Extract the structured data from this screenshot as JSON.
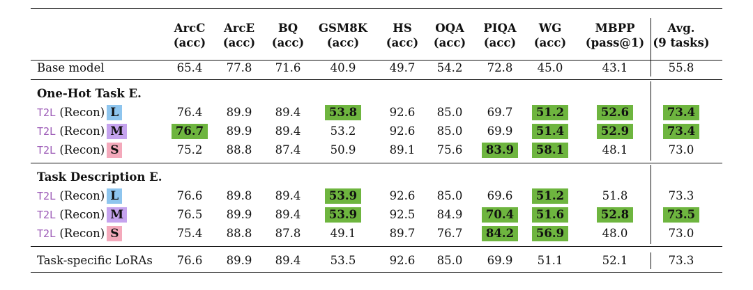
{
  "columns": [
    {
      "name": "ArcC",
      "metric": "(acc)"
    },
    {
      "name": "ArcE",
      "metric": "(acc)"
    },
    {
      "name": "BQ",
      "metric": "(acc)"
    },
    {
      "name": "GSM8K",
      "metric": "(acc)"
    },
    {
      "name": "HS",
      "metric": "(acc)"
    },
    {
      "name": "OQA",
      "metric": "(acc)"
    },
    {
      "name": "PIQA",
      "metric": "(acc)"
    },
    {
      "name": "WG",
      "metric": "(acc)"
    },
    {
      "name": "MBPP",
      "metric": "(pass@1)"
    },
    {
      "name": "Avg.",
      "metric": "(9 tasks)"
    }
  ],
  "highlight_color": "#6eb53f",
  "badge_colors": {
    "L": "#8ec5ee",
    "M": "#c5a3ee",
    "S": "#f4a9bb"
  },
  "t2l_color": "#9b59b6",
  "base_row": {
    "label": "Base model",
    "values": [
      "65.4",
      "77.8",
      "71.6",
      "40.9",
      "49.7",
      "54.2",
      "72.8",
      "45.0",
      "43.1",
      "55.8"
    ],
    "highlight": [
      false,
      false,
      false,
      false,
      false,
      false,
      false,
      false,
      false,
      false
    ]
  },
  "sections": [
    {
      "title": "One-Hot Task E.",
      "rows": [
        {
          "prefix": "T2L",
          "label": " (Recon)",
          "size": "L",
          "values": [
            "76.4",
            "89.9",
            "89.4",
            "53.8",
            "92.6",
            "85.0",
            "69.7",
            "51.2",
            "52.6",
            "73.4"
          ],
          "highlight": [
            false,
            false,
            false,
            true,
            false,
            false,
            false,
            true,
            true,
            true
          ]
        },
        {
          "prefix": "T2L",
          "label": " (Recon)",
          "size": "M",
          "values": [
            "76.7",
            "89.9",
            "89.4",
            "53.2",
            "92.6",
            "85.0",
            "69.9",
            "51.4",
            "52.9",
            "73.4"
          ],
          "highlight": [
            true,
            false,
            false,
            false,
            false,
            false,
            false,
            true,
            true,
            true
          ]
        },
        {
          "prefix": "T2L",
          "label": " (Recon)",
          "size": "S",
          "values": [
            "75.2",
            "88.8",
            "87.4",
            "50.9",
            "89.1",
            "75.6",
            "83.9",
            "58.1",
            "48.1",
            "73.0"
          ],
          "highlight": [
            false,
            false,
            false,
            false,
            false,
            false,
            true,
            true,
            false,
            false
          ]
        }
      ]
    },
    {
      "title": "Task Description E.",
      "rows": [
        {
          "prefix": "T2L",
          "label": " (Recon)",
          "size": "L",
          "values": [
            "76.6",
            "89.8",
            "89.4",
            "53.9",
            "92.6",
            "85.0",
            "69.6",
            "51.2",
            "51.8",
            "73.3"
          ],
          "highlight": [
            false,
            false,
            false,
            true,
            false,
            false,
            false,
            true,
            false,
            false
          ]
        },
        {
          "prefix": "T2L",
          "label": " (Recon)",
          "size": "M",
          "values": [
            "76.5",
            "89.9",
            "89.4",
            "53.9",
            "92.5",
            "84.9",
            "70.4",
            "51.6",
            "52.8",
            "73.5"
          ],
          "highlight": [
            false,
            false,
            false,
            true,
            false,
            false,
            true,
            true,
            true,
            true
          ]
        },
        {
          "prefix": "T2L",
          "label": " (Recon)",
          "size": "S",
          "values": [
            "75.4",
            "88.8",
            "87.8",
            "49.1",
            "89.7",
            "76.7",
            "84.2",
            "56.9",
            "48.0",
            "73.0"
          ],
          "highlight": [
            false,
            false,
            false,
            false,
            false,
            false,
            true,
            true,
            false,
            false
          ]
        }
      ]
    }
  ],
  "final_row": {
    "label": "Task-specific LoRAs",
    "values": [
      "76.6",
      "89.9",
      "89.4",
      "53.5",
      "92.6",
      "85.0",
      "69.9",
      "51.1",
      "52.1",
      "73.3"
    ],
    "highlight": [
      false,
      false,
      false,
      false,
      false,
      false,
      false,
      false,
      false,
      false
    ]
  }
}
